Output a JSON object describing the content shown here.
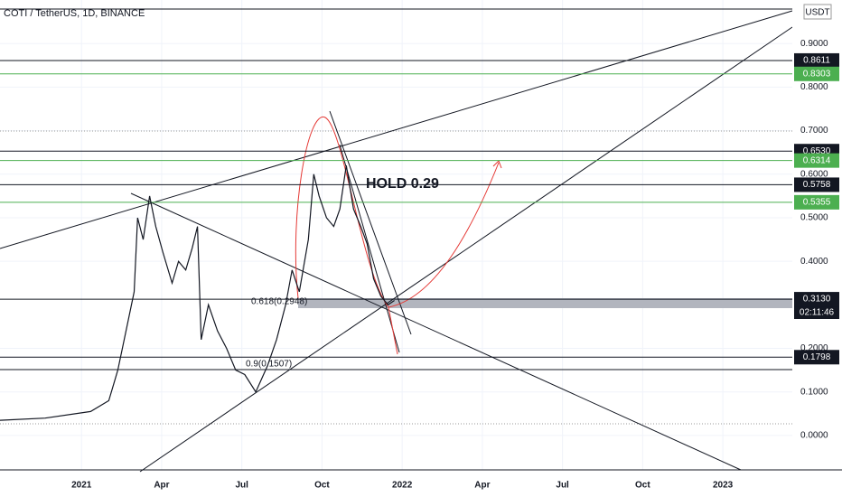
{
  "chart_data": {
    "type": "line",
    "title": "COTI / TetherUS, 1D, BINANCE",
    "currency": "USDT",
    "countdown": "02:11:46",
    "annotations": [
      "HOLD 0.29",
      "0.618(0.2948)",
      "0.9(0.1507)"
    ],
    "xlim": [
      -3.05,
      26.6
    ],
    "xticks": [
      {
        "value": 0,
        "label": "2021"
      },
      {
        "value": 3,
        "label": "Apr"
      },
      {
        "value": 6,
        "label": "Jul"
      },
      {
        "value": 9,
        "label": "Oct"
      },
      {
        "value": 12,
        "label": "2022"
      },
      {
        "value": 15,
        "label": "Apr"
      },
      {
        "value": 18,
        "label": "Jul"
      },
      {
        "value": 21,
        "label": "Oct"
      },
      {
        "value": 24,
        "label": "2023"
      }
    ],
    "ylim": [
      -0.079,
      1.0
    ],
    "yticks": [
      {
        "value": 0,
        "label": "0.0000"
      },
      {
        "value": 0.1,
        "label": "0.1000"
      },
      {
        "value": 0.2,
        "label": "0.2000"
      },
      {
        "value": 0.4,
        "label": "0.4000"
      },
      {
        "value": 0.5,
        "label": "0.5000"
      },
      {
        "value": 0.6,
        "label": "0.6000"
      },
      {
        "value": 0.7,
        "label": "0.7000"
      },
      {
        "value": 0.8,
        "label": "0.8000"
      },
      {
        "value": 0.9,
        "label": "0.9000"
      }
    ],
    "series": [
      {
        "color": "#131722",
        "x": [
          -3.05,
          -1.36,
          0.34,
          1.02,
          1.36,
          1.7,
          1.97,
          2.1,
          2.31,
          2.55,
          2.78,
          3.05,
          3.39,
          3.63,
          3.9,
          4.14,
          4.34,
          4.48,
          4.75,
          5.09,
          5.43,
          5.77,
          6.11,
          6.52,
          6.96,
          7.3,
          7.64,
          7.88,
          8.15,
          8.49,
          8.69,
          8.89,
          9.17,
          9.44,
          9.67,
          9.91,
          10.18,
          10.45,
          10.69,
          10.93,
          11.2,
          11.47,
          11.71
        ],
        "values": [
          0.035,
          0.04,
          0.055,
          0.08,
          0.15,
          0.25,
          0.33,
          0.5,
          0.45,
          0.55,
          0.48,
          0.42,
          0.35,
          0.4,
          0.38,
          0.43,
          0.48,
          0.22,
          0.3,
          0.24,
          0.2,
          0.15,
          0.14,
          0.1,
          0.16,
          0.22,
          0.3,
          0.38,
          0.33,
          0.45,
          0.6,
          0.55,
          0.5,
          0.48,
          0.52,
          0.62,
          0.52,
          0.48,
          0.44,
          0.36,
          0.32,
          0.3,
          0.31
        ]
      }
    ],
    "levels": [
      {
        "value": 0.8611,
        "label": "0.8611",
        "color": "#131722"
      },
      {
        "value": 0.8303,
        "label": "0.8303",
        "color": "#4caf50"
      },
      {
        "value": 0.653,
        "label": "0.6530",
        "color": "#131722"
      },
      {
        "value": 0.6314,
        "label": "0.6314",
        "color": "#4caf50"
      },
      {
        "value": 0.5758,
        "label": "0.5758",
        "color": "#131722"
      },
      {
        "value": 0.5355,
        "label": "0.5355",
        "color": "#4caf50"
      },
      {
        "value": 0.313,
        "label": "0.3130",
        "color": "#131722"
      },
      {
        "value": 0.1798,
        "label": "0.1798",
        "color": "#131722"
      }
    ]
  }
}
